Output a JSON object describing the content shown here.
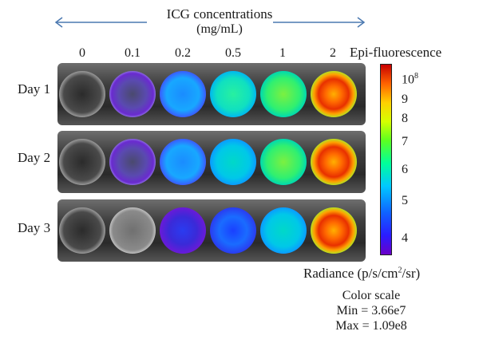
{
  "header": {
    "title": "ICG concentrations",
    "unit": "(mg/mL)"
  },
  "columns": [
    "0",
    "0.1",
    "0.2",
    "0.5",
    "1",
    "2"
  ],
  "rows": [
    {
      "label": "Day 1",
      "wells": [
        "empty",
        "sparse-purple",
        "blue",
        "teal-green",
        "green",
        "orange-red"
      ]
    },
    {
      "label": "Day 2",
      "wells": [
        "empty",
        "sparse-purple",
        "blue",
        "teal",
        "green",
        "orange-red"
      ]
    },
    {
      "label": "Day 3",
      "wells": [
        "empty",
        "faint",
        "purple-blue",
        "blue",
        "teal",
        "orange-red"
      ]
    }
  ],
  "colorbar": {
    "title": "Epi-fluorescence",
    "exponent_label": "10",
    "exponent_sup": "8",
    "ticks": [
      "9",
      "8",
      "7",
      "6",
      "5",
      "4"
    ],
    "colors": [
      "#6a00c8",
      "#2a1cff",
      "#0f62ff",
      "#00c8ff",
      "#00ff9a",
      "#5cff20",
      "#d6ff00",
      "#ffd000",
      "#ff6200",
      "#c80000"
    ]
  },
  "footer": {
    "radiance_prefix": "Radiance (p/s/cm",
    "radiance_sup": "2",
    "radiance_suffix": "/sr)",
    "color_scale": "Color scale",
    "min": "Min = 3.66e7",
    "max": "Max = 1.09e8"
  }
}
